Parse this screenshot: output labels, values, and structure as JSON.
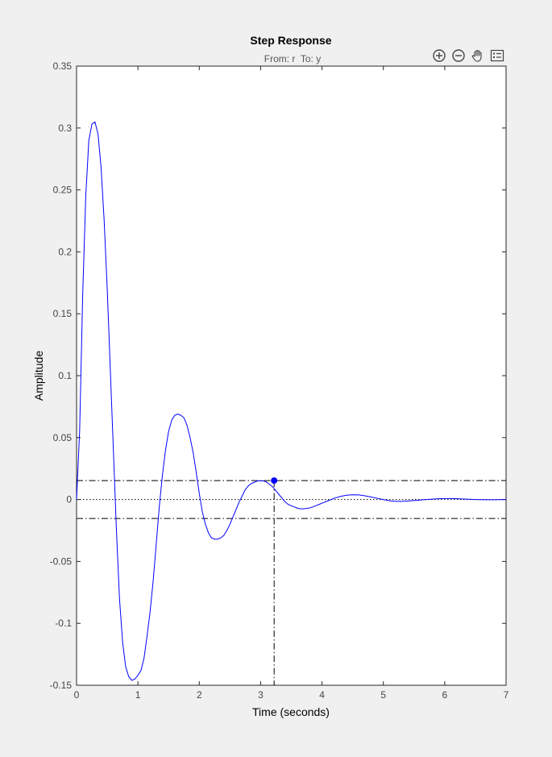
{
  "toolbar": {
    "icons": [
      "zoom-in-icon",
      "zoom-out-icon",
      "pan-hand-icon",
      "legend-icon"
    ]
  },
  "chart_data": {
    "type": "line",
    "title": "Step Response",
    "subtitle": "From: r  To: y",
    "xlabel": "Time (seconds)",
    "ylabel": "Amplitude",
    "xlim": [
      0,
      7
    ],
    "ylim": [
      -0.15,
      0.35
    ],
    "xticks": [
      0,
      1,
      2,
      3,
      4,
      5,
      6,
      7
    ],
    "xtick_labels": [
      "0",
      "1",
      "2",
      "3",
      "4",
      "5",
      "6",
      "7"
    ],
    "yticks": [
      -0.15,
      -0.1,
      -0.05,
      0,
      0.05,
      0.1,
      0.15,
      0.2,
      0.25,
      0.3,
      0.35
    ],
    "ytick_labels": [
      "-0.15",
      "-0.1",
      "-0.05",
      "0",
      "0.05",
      "0.1",
      "0.15",
      "0.2",
      "0.25",
      "0.3",
      "0.35"
    ],
    "grid": false,
    "series": [
      {
        "color": "#0000ff",
        "x": [
          0,
          0.05,
          0.1,
          0.15,
          0.2,
          0.25,
          0.3,
          0.35,
          0.4,
          0.45,
          0.5,
          0.55,
          0.6,
          0.65,
          0.7,
          0.75,
          0.8,
          0.85,
          0.9,
          0.95,
          1.0,
          1.05,
          1.1,
          1.15,
          1.2,
          1.25,
          1.3,
          1.35,
          1.4,
          1.45,
          1.5,
          1.55,
          1.6,
          1.65,
          1.7,
          1.75,
          1.8,
          1.85,
          1.9,
          1.95,
          2.0,
          2.05,
          2.1,
          2.15,
          2.2,
          2.25,
          2.3,
          2.35,
          2.4,
          2.45,
          2.5,
          2.55,
          2.6,
          2.65,
          2.7,
          2.75,
          2.8,
          2.85,
          2.9,
          2.95,
          3.0,
          3.05,
          3.1,
          3.15,
          3.2,
          3.25,
          3.3,
          3.35,
          3.4,
          3.45,
          3.5,
          3.55,
          3.6,
          3.65,
          3.7,
          3.75,
          3.8,
          3.85,
          3.9,
          3.95,
          4.0,
          4.1,
          4.2,
          4.3,
          4.4,
          4.5,
          4.6,
          4.7,
          4.8,
          4.9,
          5.0,
          5.1,
          5.2,
          5.3,
          5.4,
          5.5,
          5.6,
          5.7,
          5.8,
          5.9,
          6.0,
          6.1,
          6.2,
          6.3,
          6.4,
          6.5,
          6.6,
          6.7,
          6.8,
          6.9,
          7.0
        ],
        "y": [
          0,
          0.055,
          0.165,
          0.245,
          0.29,
          0.303,
          0.305,
          0.295,
          0.268,
          0.225,
          0.17,
          0.105,
          0.04,
          -0.025,
          -0.08,
          -0.115,
          -0.135,
          -0.143,
          -0.146,
          -0.145,
          -0.142,
          -0.138,
          -0.128,
          -0.11,
          -0.09,
          -0.065,
          -0.035,
          -0.005,
          0.02,
          0.04,
          0.055,
          0.064,
          0.068,
          0.069,
          0.068,
          0.066,
          0.06,
          0.05,
          0.038,
          0.022,
          0.005,
          -0.01,
          -0.02,
          -0.027,
          -0.031,
          -0.032,
          -0.032,
          -0.031,
          -0.029,
          -0.025,
          -0.02,
          -0.014,
          -0.008,
          -0.002,
          0.003,
          0.008,
          0.011,
          0.013,
          0.014,
          0.015,
          0.015,
          0.015,
          0.014,
          0.012,
          0.01,
          0.007,
          0.004,
          0.001,
          -0.002,
          -0.004,
          -0.005,
          -0.006,
          -0.007,
          -0.0075,
          -0.0075,
          -0.0072,
          -0.0068,
          -0.006,
          -0.005,
          -0.004,
          -0.003,
          -0.001,
          0.001,
          0.0025,
          0.0035,
          0.0038,
          0.0037,
          0.003,
          0.002,
          0.001,
          0.0,
          -0.001,
          -0.0015,
          -0.0015,
          -0.0012,
          -0.0008,
          -0.0004,
          0.0,
          0.0003,
          0.0006,
          0.0008,
          0.0008,
          0.0006,
          0.0004,
          0.0002,
          0.0,
          -0.0001,
          -0.0002,
          -0.0002,
          -0.0001,
          0.0
        ]
      }
    ],
    "reference_lines": {
      "zero_line_y": 0,
      "settling_band": [
        -0.0153,
        0.0153
      ],
      "settling_marker": {
        "x": 3.22,
        "y": 0.0153
      }
    }
  }
}
